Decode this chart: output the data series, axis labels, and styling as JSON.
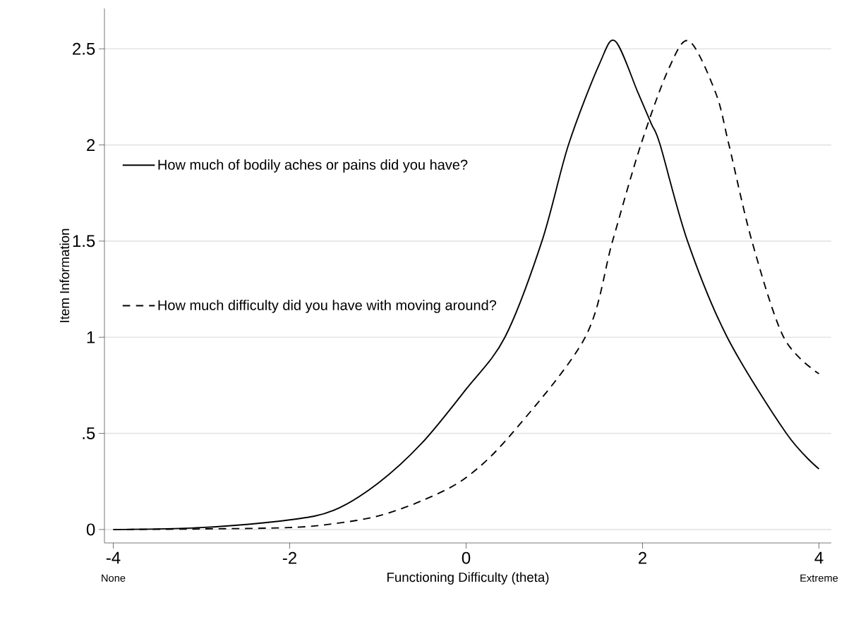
{
  "chart_data": {
    "type": "line",
    "xlabel": "Functioning Difficulty (theta)",
    "ylabel": "Item Information",
    "xlim": [
      -4.1,
      4.14
    ],
    "ylim": [
      -0.07,
      2.71
    ],
    "xticks": [
      -4,
      -2,
      0,
      2,
      4
    ],
    "yticks": [
      0,
      {
        "value": 0.5,
        "label": ".5"
      },
      1,
      1.5,
      2,
      2.5
    ],
    "grid": "y",
    "legend": "left",
    "marker": "none",
    "annotations": [
      "None",
      "Extreme"
    ],
    "series": [
      {
        "name": "How much of bodily aches or pains did you have?",
        "color": "#000000",
        "line_style": "solid",
        "x": [
          -4,
          -3,
          -2,
          -1.5,
          -1,
          -0.5,
          0,
          0.44,
          0.86,
          1.16,
          1.51,
          1.69,
          1.95,
          2.1,
          2.2,
          2.51,
          2.96,
          3.63,
          4
        ],
        "values": [
          0,
          0.01,
          0.05,
          0.1,
          0.24,
          0.45,
          0.73,
          1.0,
          1.5,
          2.0,
          2.42,
          2.54,
          2.27,
          2.11,
          2.0,
          1.5,
          1.0,
          0.5,
          0.315
        ]
      },
      {
        "name": "How much difficulty did you have with moving around?",
        "color": "#000000",
        "line_style": "dashed",
        "x": [
          -4,
          -3,
          -2,
          -1.5,
          -1,
          -0.5,
          0,
          0.52,
          1.35,
          1.66,
          1.98,
          2.3,
          2.53,
          2.83,
          2.98,
          3.24,
          3.6,
          4
        ],
        "values": [
          0,
          0.003,
          0.01,
          0.03,
          0.07,
          0.15,
          0.27,
          0.5,
          1.0,
          1.5,
          2.0,
          2.4,
          2.54,
          2.27,
          2.0,
          1.5,
          1.0,
          0.81
        ]
      }
    ]
  }
}
